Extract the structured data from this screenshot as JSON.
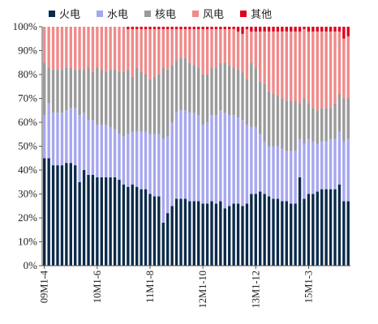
{
  "chart_data": {
    "type": "bar",
    "stacked": true,
    "title": "",
    "xlabel": "",
    "ylabel": "",
    "ylim": [
      0,
      100
    ],
    "y_ticks": [
      "0%",
      "10%",
      "20%",
      "30%",
      "40%",
      "50%",
      "60%",
      "70%",
      "80%",
      "90%",
      "100%"
    ],
    "x_tick_labels": [
      {
        "index": 0,
        "label": "09M1-4"
      },
      {
        "index": 12,
        "label": "10M1-6"
      },
      {
        "index": 24,
        "label": "11M1-8"
      },
      {
        "index": 36,
        "label": "12M1-10"
      },
      {
        "index": 48,
        "label": "13M1-12"
      },
      {
        "index": 60,
        "label": "15M1-3"
      }
    ],
    "legend": {
      "position": "top",
      "items": [
        {
          "name": "火电",
          "color": "#0b2a4a"
        },
        {
          "name": "水电",
          "color": "#a6a6f0"
        },
        {
          "name": "核电",
          "color": "#9a9a9a"
        },
        {
          "name": "风电",
          "color": "#f08a8a"
        },
        {
          "name": "其他",
          "color": "#e0001b"
        }
      ]
    },
    "series": [
      {
        "name": "火电",
        "color": "#0b2a4a",
        "values": [
          45,
          45,
          42,
          42,
          42,
          43,
          43,
          42,
          35,
          40,
          38,
          38,
          37,
          37,
          37,
          37,
          37,
          36,
          34,
          33,
          34,
          33,
          32,
          32,
          30,
          29,
          29,
          18,
          22,
          25,
          28,
          28,
          28,
          27,
          27,
          27,
          26,
          26,
          27,
          26,
          27,
          24,
          25,
          26,
          26,
          25,
          26,
          30,
          30,
          31,
          30,
          29,
          28,
          28,
          27,
          27,
          26,
          26,
          37,
          28,
          30,
          30,
          31,
          32,
          32,
          32,
          32,
          34,
          27,
          27
        ]
      },
      {
        "name": "水电",
        "color": "#a6a6f0",
        "values": [
          18,
          23,
          22,
          22,
          22,
          22,
          23,
          24,
          28,
          24,
          23,
          23,
          22,
          22,
          22,
          21,
          20,
          19,
          20,
          22,
          22,
          23,
          24,
          24,
          25,
          26,
          26,
          35,
          32,
          35,
          36,
          37,
          37,
          37,
          37,
          36,
          33,
          34,
          36,
          37,
          38,
          40,
          38,
          37,
          36,
          36,
          33,
          28,
          28,
          24,
          22,
          21,
          22,
          22,
          22,
          21,
          22,
          22,
          16,
          23,
          23,
          22,
          20,
          20,
          20,
          21,
          21,
          22,
          25,
          26
        ]
      },
      {
        "name": "核电",
        "color": "#9a9a9a",
        "values": [
          22,
          15,
          18,
          18,
          18,
          18,
          17,
          16,
          19,
          18,
          22,
          20,
          24,
          23,
          22,
          24,
          25,
          26,
          27,
          27,
          23,
          27,
          25,
          24,
          23,
          24,
          25,
          30,
          28,
          24,
          22,
          22,
          22,
          21,
          20,
          20,
          21,
          20,
          20,
          20,
          20,
          21,
          21,
          20,
          20,
          20,
          19,
          27,
          25,
          22,
          24,
          23,
          22,
          21,
          21,
          21,
          21,
          21,
          15,
          19,
          15,
          14,
          14,
          14,
          14,
          13,
          15,
          16,
          18,
          17
        ]
      },
      {
        "name": "风电",
        "color": "#f08a8a",
        "values": [
          15,
          17,
          18,
          18,
          18,
          17,
          17,
          18,
          18,
          18,
          17,
          19,
          17,
          18,
          19,
          18,
          18,
          19,
          19,
          17,
          20,
          16,
          18,
          19,
          21,
          20,
          19,
          16,
          17,
          15,
          13,
          12,
          12,
          14,
          15,
          16,
          19,
          19,
          16,
          16,
          14,
          14,
          15,
          16,
          16,
          16,
          21,
          13,
          15,
          21,
          22,
          25,
          26,
          27,
          28,
          29,
          29,
          29,
          30,
          29,
          30,
          32,
          33,
          32,
          32,
          32,
          30,
          26,
          25,
          26
        ]
      },
      {
        "name": "其他",
        "color": "#e0001b",
        "values": [
          0,
          0,
          0,
          0,
          0,
          0,
          0,
          0,
          0,
          0,
          0,
          0,
          0,
          0,
          0,
          0,
          0,
          0,
          0,
          1,
          1,
          1,
          1,
          1,
          1,
          1,
          1,
          1,
          1,
          1,
          1,
          1,
          1,
          1,
          1,
          1,
          1,
          1,
          1,
          1,
          1,
          1,
          1,
          1,
          2,
          3,
          1,
          2,
          2,
          2,
          2,
          2,
          2,
          2,
          2,
          2,
          2,
          2,
          2,
          1,
          2,
          2,
          2,
          2,
          2,
          2,
          2,
          2,
          5,
          4
        ]
      }
    ]
  }
}
